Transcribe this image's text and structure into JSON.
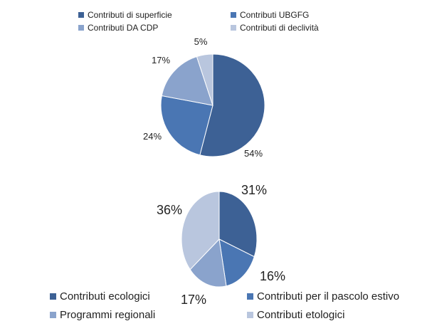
{
  "chart_data": [
    {
      "type": "pie",
      "legend_position": "top",
      "categories": [
        "Contributi di superficie",
        "Contributi UBGFG",
        "Contributi DA CDP",
        "Contributi di declività"
      ],
      "values": [
        54,
        24,
        17,
        5
      ],
      "labels": [
        "54%",
        "24%",
        "17%",
        "5%"
      ],
      "colors": [
        "#3d6195",
        "#4a76b3",
        "#8aa3cc",
        "#b9c6de"
      ]
    },
    {
      "type": "pie",
      "legend_position": "bottom",
      "categories": [
        "Contributi ecologici",
        "Contributi per il pascolo estivo",
        "Programmi regionali",
        "Contributi etologici"
      ],
      "values": [
        31,
        16,
        17,
        36
      ],
      "labels": [
        "31%",
        "16%",
        "17%",
        "36%"
      ],
      "colors": [
        "#3d6195",
        "#4a76b3",
        "#8aa3cc",
        "#b9c6de"
      ]
    }
  ]
}
